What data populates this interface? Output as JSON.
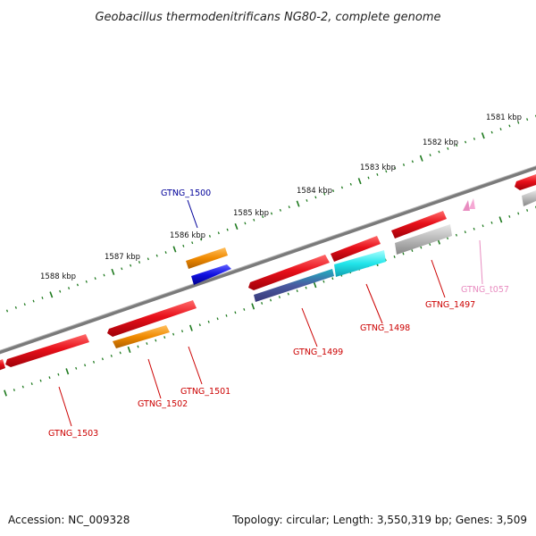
{
  "title": "Geobacillus thermodenitrificans NG80-2, complete genome",
  "footer": {
    "accession": "Accession: NC_009328",
    "summary": "Topology: circular; Length: 3,550,319 bp; Genes: 3,509"
  },
  "scale_labels": [
    "1581 kbp",
    "1582 kbp",
    "1583 kbp",
    "1584 kbp",
    "1585 kbp",
    "1586 kbp",
    "1587 kbp",
    "1588 kbp"
  ],
  "gene_labels": [
    {
      "id": "GTNG_1500",
      "color": "#00009a"
    },
    {
      "id": "GTNG_t057",
      "color": "#e88cc0"
    },
    {
      "id": "GTNG_1497",
      "color": "#cc0000"
    },
    {
      "id": "GTNG_1498",
      "color": "#cc0000"
    },
    {
      "id": "GTNG_1499",
      "color": "#cc0000"
    },
    {
      "id": "GTNG_1501",
      "color": "#cc0000"
    },
    {
      "id": "GTNG_1502",
      "color": "#cc0000"
    },
    {
      "id": "GTNG_1503",
      "color": "#cc0000"
    }
  ],
  "colors": {
    "cds": "#e8101a",
    "rna": "#f08a00",
    "blue_feature": "#1010e0",
    "cyan_feature": "#22e5ea",
    "gray_feature": "#b0b0b0",
    "backbone": "#808080",
    "ticks": "#1f7a1f"
  }
}
